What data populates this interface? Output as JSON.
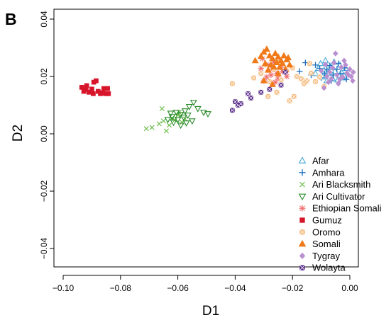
{
  "panel_letter": "B",
  "chart_data": {
    "type": "scatter",
    "title": "",
    "xlabel": "D1",
    "ylabel": "D2",
    "xlim": [
      -0.1,
      0.0
    ],
    "ylim": [
      -0.04,
      0.04
    ],
    "xticks": [
      -0.1,
      -0.08,
      -0.06,
      -0.04,
      -0.02,
      0.0
    ],
    "xtick_labels": [
      "−0.10",
      "−0.08",
      "−0.06",
      "−0.04",
      "−0.02",
      "0.00"
    ],
    "yticks": [
      -0.04,
      -0.02,
      0.0,
      0.02,
      0.04
    ],
    "ytick_labels": [
      "−0.04",
      "−0.02",
      "0.00",
      "0.02",
      "0.04"
    ],
    "grid": false,
    "legend_position": "bottom-right",
    "series": [
      {
        "name": "Afar",
        "marker": "triangle-up-open",
        "color": "#4aa8d8",
        "points": [
          [
            -0.0102,
            0.0245
          ],
          [
            -0.0085,
            0.0255
          ],
          [
            -0.0068,
            0.0232
          ],
          [
            -0.0052,
            0.0218
          ],
          [
            -0.0035,
            0.024
          ],
          [
            -0.002,
            0.0202
          ],
          [
            -0.0095,
            0.0198
          ],
          [
            -0.006,
            0.0192
          ],
          [
            -0.0042,
            0.0188
          ],
          [
            -0.011,
            0.0228
          ],
          [
            -0.0075,
            0.0212
          ],
          [
            -0.003,
            0.0215
          ],
          [
            -0.0015,
            0.0228
          ],
          [
            -0.008,
            0.0185
          ],
          [
            -0.0055,
            0.025
          ],
          [
            -0.012,
            0.021
          ],
          [
            -0.0025,
            0.0195
          ],
          [
            -0.009,
            0.0222
          ]
        ]
      },
      {
        "name": "Amhara",
        "marker": "plus",
        "color": "#1f6fbf",
        "points": [
          [
            -0.0175,
            0.0218
          ],
          [
            -0.0155,
            0.0248
          ],
          [
            -0.012,
            0.024
          ],
          [
            -0.0105,
            0.0228
          ],
          [
            -0.0088,
            0.021
          ],
          [
            -0.007,
            0.0238
          ],
          [
            -0.0058,
            0.0205
          ],
          [
            -0.0045,
            0.0225
          ],
          [
            -0.0032,
            0.021
          ],
          [
            -0.0018,
            0.023
          ],
          [
            -0.0012,
            0.019
          ],
          [
            -0.01,
            0.0195
          ],
          [
            -0.0065,
            0.0185
          ],
          [
            -0.0135,
            0.0205
          ],
          [
            -0.004,
            0.0245
          ],
          [
            -0.008,
            0.0225
          ]
        ]
      },
      {
        "name": "Ari Blacksmith",
        "marker": "cross",
        "color": "#66bb44",
        "points": [
          [
            -0.071,
            0.0018
          ],
          [
            -0.069,
            0.0022
          ],
          [
            -0.0665,
            0.0035
          ],
          [
            -0.065,
            0.0045
          ],
          [
            -0.064,
            0.001
          ],
          [
            -0.063,
            0.003
          ],
          [
            -0.062,
            0.0055
          ],
          [
            -0.0655,
            0.0088
          ],
          [
            -0.06,
            0.0065
          ],
          [
            -0.0585,
            0.004
          ],
          [
            -0.061,
            0.0048
          ],
          [
            -0.0595,
            0.0075
          ],
          [
            -0.0575,
            0.0052
          ]
        ]
      },
      {
        "name": "Ari Cultivator",
        "marker": "triangle-down-open",
        "color": "#2a8a2a",
        "points": [
          [
            -0.062,
            0.006
          ],
          [
            -0.0605,
            0.0075
          ],
          [
            -0.059,
            0.0068
          ],
          [
            -0.0575,
            0.008
          ],
          [
            -0.056,
            0.0095
          ],
          [
            -0.0545,
            0.011
          ],
          [
            -0.053,
            0.0088
          ],
          [
            -0.051,
            0.0075
          ],
          [
            -0.0495,
            0.007
          ],
          [
            -0.0615,
            0.004
          ],
          [
            -0.06,
            0.005
          ],
          [
            -0.058,
            0.0058
          ],
          [
            -0.0565,
            0.0065
          ],
          [
            -0.055,
            0.0045
          ],
          [
            -0.0635,
            0.005
          ],
          [
            -0.059,
            0.003
          ],
          [
            -0.057,
            0.0038
          ],
          [
            -0.0625,
            0.0072
          ]
        ]
      },
      {
        "name": "Ethiopian Somali",
        "marker": "asterisk",
        "color": "#ef6a6a",
        "points": [
          [
            -0.0305,
            0.0262
          ],
          [
            -0.0285,
            0.024
          ],
          [
            -0.027,
            0.0225
          ],
          [
            -0.0255,
            0.021
          ],
          [
            -0.024,
            0.0232
          ],
          [
            -0.029,
            0.0198
          ],
          [
            -0.03,
            0.0185
          ],
          [
            -0.0265,
            0.025
          ],
          [
            -0.025,
            0.0195
          ],
          [
            -0.0235,
            0.0218
          ],
          [
            -0.0275,
            0.0205
          ],
          [
            -0.031,
            0.0228
          ],
          [
            -0.026,
            0.018
          ],
          [
            -0.022,
            0.02
          ]
        ]
      },
      {
        "name": "Gumuz",
        "marker": "square-filled",
        "color": "#d7152a",
        "points": [
          [
            -0.0935,
            0.0162
          ],
          [
            -0.0928,
            0.0148
          ],
          [
            -0.0918,
            0.0168
          ],
          [
            -0.091,
            0.0145
          ],
          [
            -0.09,
            0.0156
          ],
          [
            -0.0893,
            0.018
          ],
          [
            -0.0885,
            0.0185
          ],
          [
            -0.0878,
            0.0148
          ],
          [
            -0.087,
            0.014
          ],
          [
            -0.0862,
            0.0143
          ],
          [
            -0.0852,
            0.014
          ],
          [
            -0.0842,
            0.014
          ],
          [
            -0.0858,
            0.0158
          ],
          [
            -0.092,
            0.0155
          ],
          [
            -0.0895,
            0.014
          ],
          [
            -0.0845,
            0.0158
          ]
        ]
      },
      {
        "name": "Oromo",
        "marker": "square-crossed",
        "color": "#f5b97a",
        "points": [
          [
            -0.041,
            0.0175
          ],
          [
            -0.0335,
            0.0195
          ],
          [
            -0.031,
            0.021
          ],
          [
            -0.0295,
            0.024
          ],
          [
            -0.028,
            0.0182
          ],
          [
            -0.0265,
            0.0225
          ],
          [
            -0.025,
            0.026
          ],
          [
            -0.024,
            0.0188
          ],
          [
            -0.022,
            0.022
          ],
          [
            -0.02,
            0.023
          ],
          [
            -0.0185,
            0.02
          ],
          [
            -0.017,
            0.0192
          ],
          [
            -0.015,
            0.0185
          ],
          [
            -0.0135,
            0.0212
          ],
          [
            -0.012,
            0.0182
          ],
          [
            -0.0105,
            0.0198
          ],
          [
            -0.0285,
            0.013
          ],
          [
            -0.0255,
            0.0145
          ],
          [
            -0.021,
            0.0115
          ],
          [
            -0.016,
            0.0175
          ],
          [
            -0.0195,
            0.013
          ],
          [
            -0.009,
            0.0165
          ],
          [
            -0.014,
            0.0245
          ]
        ]
      },
      {
        "name": "Somali",
        "marker": "triangle-up-filled",
        "color": "#f07a1a",
        "points": [
          [
            -0.031,
            0.027
          ],
          [
            -0.03,
            0.0285
          ],
          [
            -0.029,
            0.0295
          ],
          [
            -0.028,
            0.0272
          ],
          [
            -0.027,
            0.0262
          ],
          [
            -0.026,
            0.028
          ],
          [
            -0.025,
            0.0268
          ],
          [
            -0.024,
            0.0255
          ],
          [
            -0.023,
            0.0272
          ],
          [
            -0.022,
            0.0258
          ],
          [
            -0.0295,
            0.0245
          ],
          [
            -0.0275,
            0.024
          ],
          [
            -0.0265,
            0.0233
          ],
          [
            -0.0245,
            0.0232
          ],
          [
            -0.0235,
            0.0245
          ],
          [
            -0.0225,
            0.0225
          ],
          [
            -0.0285,
            0.0222
          ],
          [
            -0.025,
            0.021
          ],
          [
            -0.021,
            0.024
          ],
          [
            -0.03,
            0.0185
          ],
          [
            -0.027,
            0.0172
          ],
          [
            -0.0215,
            0.0265
          ],
          [
            -0.033,
            0.0255
          ],
          [
            -0.0255,
            0.0248
          ]
        ]
      },
      {
        "name": "Tygray",
        "marker": "diamond-filled",
        "color": "#b98fd0",
        "points": [
          [
            -0.005,
            0.028
          ],
          [
            -0.002,
            0.0255
          ],
          [
            0.0,
            0.0225
          ],
          [
            0.0005,
            0.02
          ],
          [
            0.001,
            0.0185
          ],
          [
            -0.001,
            0.0212
          ],
          [
            -0.003,
            0.0232
          ],
          [
            -0.0045,
            0.0205
          ],
          [
            -0.006,
            0.023
          ],
          [
            -0.0075,
            0.018
          ],
          [
            -0.009,
            0.016
          ],
          [
            -0.0065,
            0.0192
          ],
          [
            -0.004,
            0.0175
          ],
          [
            -0.0025,
            0.0198
          ],
          [
            -0.0015,
            0.024
          ],
          [
            -0.0055,
            0.0248
          ],
          [
            -0.007,
            0.0215
          ],
          [
            -0.0035,
            0.019
          ],
          [
            -0.0005,
            0.0205
          ],
          [
            -0.008,
            0.02
          ],
          [
            0.0012,
            0.0215
          ],
          [
            -0.01,
            0.022
          ],
          [
            -0.0085,
            0.0242
          ]
        ]
      },
      {
        "name": "Wolayta",
        "marker": "square-crossed",
        "color": "#5a2c8a",
        "points": [
          [
            -0.041,
            0.0082
          ],
          [
            -0.04,
            0.0112
          ],
          [
            -0.039,
            0.01
          ],
          [
            -0.038,
            0.0105
          ],
          [
            -0.0355,
            0.014
          ],
          [
            -0.0345,
            0.0125
          ],
          [
            -0.031,
            0.0145
          ],
          [
            -0.028,
            0.0155
          ],
          [
            -0.024,
            0.017
          ],
          [
            -0.0225,
            0.0215
          ]
        ]
      }
    ]
  }
}
